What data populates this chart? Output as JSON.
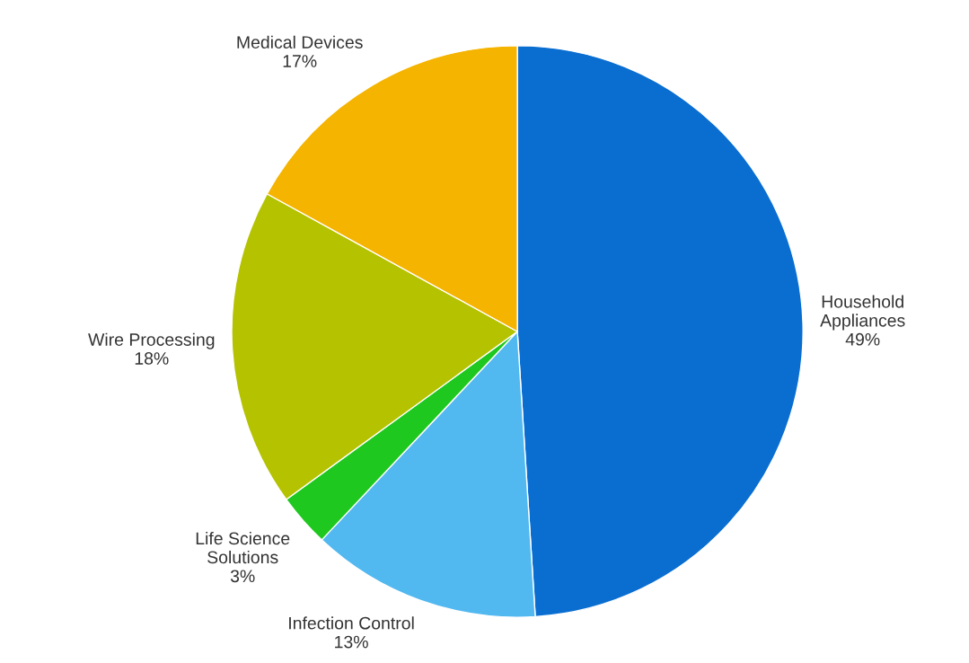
{
  "chart_data": {
    "type": "pie",
    "categories": [
      "Household Appliances",
      "Infection Control",
      "Life Science Solutions",
      "Wire Processing",
      "Medical Devices"
    ],
    "values": [
      49,
      13,
      3,
      18,
      17
    ],
    "colors": [
      "#0a6ed1",
      "#52b8f0",
      "#1fc81f",
      "#b5c200",
      "#f5b400"
    ],
    "value_labels": [
      "49%",
      "13%",
      "3%",
      "18%",
      "17%"
    ],
    "legend": false
  }
}
